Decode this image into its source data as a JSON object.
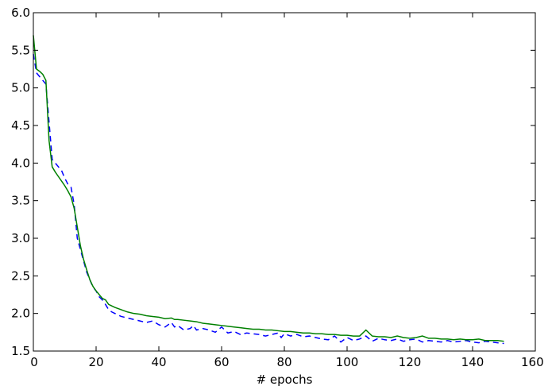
{
  "chart_data": {
    "type": "line",
    "xlabel": "# epochs",
    "ylabel": "",
    "xlim": [
      0,
      160
    ],
    "ylim": [
      1.5,
      6.0
    ],
    "xticks": [
      0,
      20,
      40,
      60,
      80,
      100,
      120,
      140,
      160
    ],
    "yticks": [
      1.5,
      2.0,
      2.5,
      3.0,
      3.5,
      4.0,
      4.5,
      5.0,
      5.5,
      6.0
    ],
    "xtick_labels": [
      "0",
      "20",
      "40",
      "60",
      "80",
      "100",
      "120",
      "140",
      "160"
    ],
    "ytick_labels": [
      "1.5",
      "2.0",
      "2.5",
      "3.0",
      "3.5",
      "4.0",
      "4.5",
      "5.0",
      "5.5",
      "6.0"
    ],
    "grid": false,
    "series": [
      {
        "color": "#0000ff",
        "style": "dashed",
        "x": [
          0,
          1,
          2,
          3,
          4,
          5,
          6,
          7,
          8,
          9,
          10,
          11,
          12,
          13,
          14,
          15,
          16,
          17,
          18,
          19,
          20,
          21,
          22,
          23,
          24,
          25,
          26,
          28,
          30,
          32,
          34,
          36,
          38,
          40,
          42,
          44,
          45,
          46,
          48,
          50,
          51,
          52,
          54,
          56,
          58,
          60,
          62,
          64,
          66,
          68,
          70,
          72,
          74,
          76,
          78,
          79,
          80,
          82,
          84,
          86,
          88,
          90,
          92,
          94,
          96,
          98,
          100,
          102,
          104,
          106,
          108,
          110,
          112,
          114,
          116,
          118,
          120,
          122,
          124,
          126,
          128,
          130,
          132,
          134,
          136,
          138,
          140,
          142,
          144,
          146,
          148,
          150
        ],
        "y": [
          5.45,
          5.2,
          5.15,
          5.1,
          5.05,
          4.55,
          4.05,
          4.0,
          3.95,
          3.9,
          3.8,
          3.72,
          3.68,
          3.45,
          3.0,
          2.85,
          2.7,
          2.55,
          2.45,
          2.35,
          2.3,
          2.22,
          2.18,
          2.12,
          2.05,
          2.02,
          2.0,
          1.96,
          1.94,
          1.92,
          1.9,
          1.88,
          1.9,
          1.85,
          1.82,
          1.88,
          1.82,
          1.84,
          1.78,
          1.8,
          1.84,
          1.78,
          1.8,
          1.78,
          1.75,
          1.82,
          1.74,
          1.76,
          1.72,
          1.74,
          1.73,
          1.72,
          1.7,
          1.72,
          1.74,
          1.68,
          1.73,
          1.7,
          1.72,
          1.69,
          1.7,
          1.68,
          1.66,
          1.65,
          1.7,
          1.62,
          1.68,
          1.64,
          1.66,
          1.7,
          1.63,
          1.67,
          1.65,
          1.64,
          1.66,
          1.63,
          1.65,
          1.66,
          1.62,
          1.64,
          1.63,
          1.62,
          1.64,
          1.62,
          1.63,
          1.64,
          1.62,
          1.61,
          1.63,
          1.62,
          1.61,
          1.6
        ]
      },
      {
        "color": "#008000",
        "style": "solid",
        "x": [
          0,
          1,
          2,
          3,
          4,
          5,
          6,
          7,
          8,
          9,
          10,
          11,
          12,
          13,
          14,
          15,
          16,
          17,
          18,
          19,
          20,
          21,
          22,
          23,
          24,
          25,
          26,
          28,
          30,
          32,
          34,
          36,
          38,
          40,
          42,
          44,
          45,
          46,
          48,
          50,
          52,
          54,
          56,
          58,
          60,
          62,
          64,
          66,
          68,
          70,
          72,
          74,
          76,
          78,
          80,
          82,
          84,
          86,
          88,
          90,
          92,
          94,
          96,
          98,
          100,
          102,
          104,
          106,
          108,
          110,
          112,
          114,
          116,
          118,
          120,
          122,
          124,
          126,
          128,
          130,
          132,
          134,
          136,
          138,
          140,
          142,
          144,
          146,
          148,
          150
        ],
        "y": [
          5.7,
          5.25,
          5.22,
          5.18,
          5.1,
          4.3,
          3.95,
          3.88,
          3.82,
          3.76,
          3.7,
          3.63,
          3.55,
          3.4,
          3.15,
          2.9,
          2.72,
          2.58,
          2.45,
          2.36,
          2.3,
          2.25,
          2.2,
          2.18,
          2.12,
          2.1,
          2.08,
          2.05,
          2.02,
          2.0,
          1.99,
          1.97,
          1.96,
          1.95,
          1.93,
          1.94,
          1.92,
          1.92,
          1.91,
          1.9,
          1.89,
          1.87,
          1.86,
          1.85,
          1.84,
          1.83,
          1.82,
          1.81,
          1.8,
          1.79,
          1.79,
          1.78,
          1.78,
          1.77,
          1.76,
          1.76,
          1.75,
          1.74,
          1.74,
          1.73,
          1.73,
          1.72,
          1.72,
          1.71,
          1.71,
          1.7,
          1.7,
          1.78,
          1.7,
          1.69,
          1.69,
          1.68,
          1.7,
          1.68,
          1.67,
          1.68,
          1.7,
          1.67,
          1.67,
          1.66,
          1.66,
          1.65,
          1.66,
          1.65,
          1.65,
          1.66,
          1.64,
          1.64,
          1.64,
          1.63
        ]
      }
    ]
  }
}
